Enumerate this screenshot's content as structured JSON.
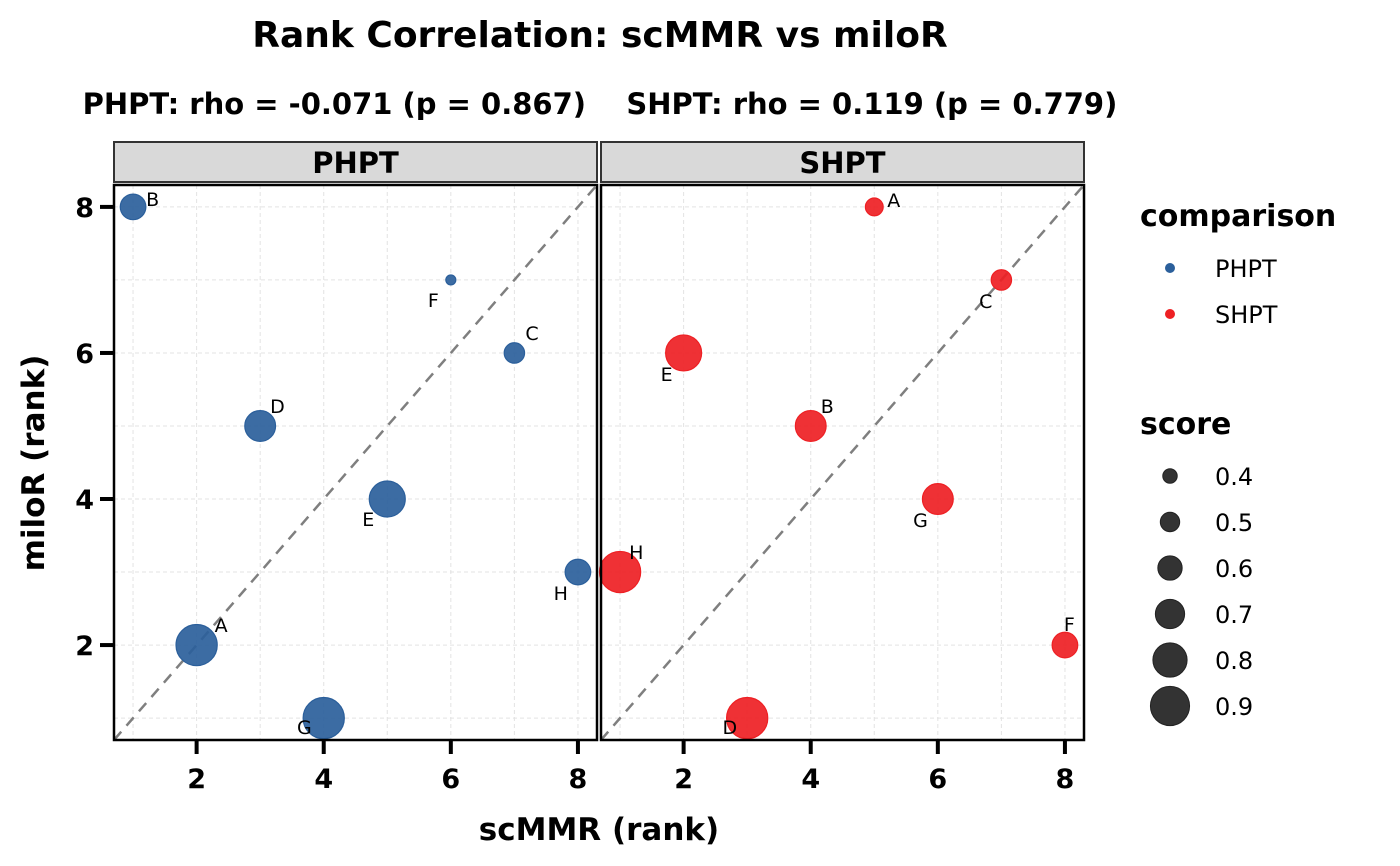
{
  "chart_data": {
    "type": "scatter",
    "title": "Rank Correlation: scMMR vs miloR",
    "subtitle": "PHPT: rho = -0.071 (p = 0.867)    SHPT: rho = 0.119 (p = 0.779)",
    "xlabel": "scMMR (rank)",
    "ylabel": "miloR (rank)",
    "xlim": [
      0.7,
      8.3
    ],
    "ylim": [
      0.7,
      8.3
    ],
    "x_ticks": [
      2,
      4,
      6,
      8
    ],
    "y_ticks": [
      2,
      4,
      6,
      8
    ],
    "grid": true,
    "reference_line": "y = x (dashed)",
    "panels": [
      {
        "name": "PHPT",
        "color": "#2b5f9b",
        "points": [
          {
            "label": "A",
            "x": 2,
            "y": 2,
            "score": 0.9
          },
          {
            "label": "B",
            "x": 1,
            "y": 8,
            "score": 0.6
          },
          {
            "label": "C",
            "x": 7,
            "y": 6,
            "score": 0.5
          },
          {
            "label": "D",
            "x": 3,
            "y": 5,
            "score": 0.7
          },
          {
            "label": "E",
            "x": 5,
            "y": 4,
            "score": 0.8
          },
          {
            "label": "F",
            "x": 6,
            "y": 7,
            "score": 0.3
          },
          {
            "label": "G",
            "x": 4,
            "y": 1,
            "score": 0.9
          },
          {
            "label": "H",
            "x": 8,
            "y": 3,
            "score": 0.6
          }
        ]
      },
      {
        "name": "SHPT",
        "color": "#ee2024",
        "points": [
          {
            "label": "A",
            "x": 5,
            "y": 8,
            "score": 0.45
          },
          {
            "label": "B",
            "x": 4,
            "y": 5,
            "score": 0.7
          },
          {
            "label": "C",
            "x": 7,
            "y": 7,
            "score": 0.5
          },
          {
            "label": "D",
            "x": 3,
            "y": 1,
            "score": 0.9
          },
          {
            "label": "E",
            "x": 2,
            "y": 6,
            "score": 0.8
          },
          {
            "label": "F",
            "x": 8,
            "y": 2,
            "score": 0.6
          },
          {
            "label": "G",
            "x": 6,
            "y": 4,
            "score": 0.7
          },
          {
            "label": "H",
            "x": 1,
            "y": 3,
            "score": 0.9
          }
        ]
      }
    ],
    "legend": {
      "placement": "right",
      "color_title": "comparison",
      "color_entries": [
        {
          "label": "PHPT",
          "color": "#2b5f9b"
        },
        {
          "label": "SHPT",
          "color": "#ee2024"
        }
      ],
      "size_title": "score",
      "size_entries": [
        0.4,
        0.5,
        0.6,
        0.7,
        0.8,
        0.9
      ],
      "size_entry_labels": [
        "0.4",
        "0.5",
        "0.6",
        "0.7",
        "0.8",
        "0.9"
      ]
    }
  }
}
